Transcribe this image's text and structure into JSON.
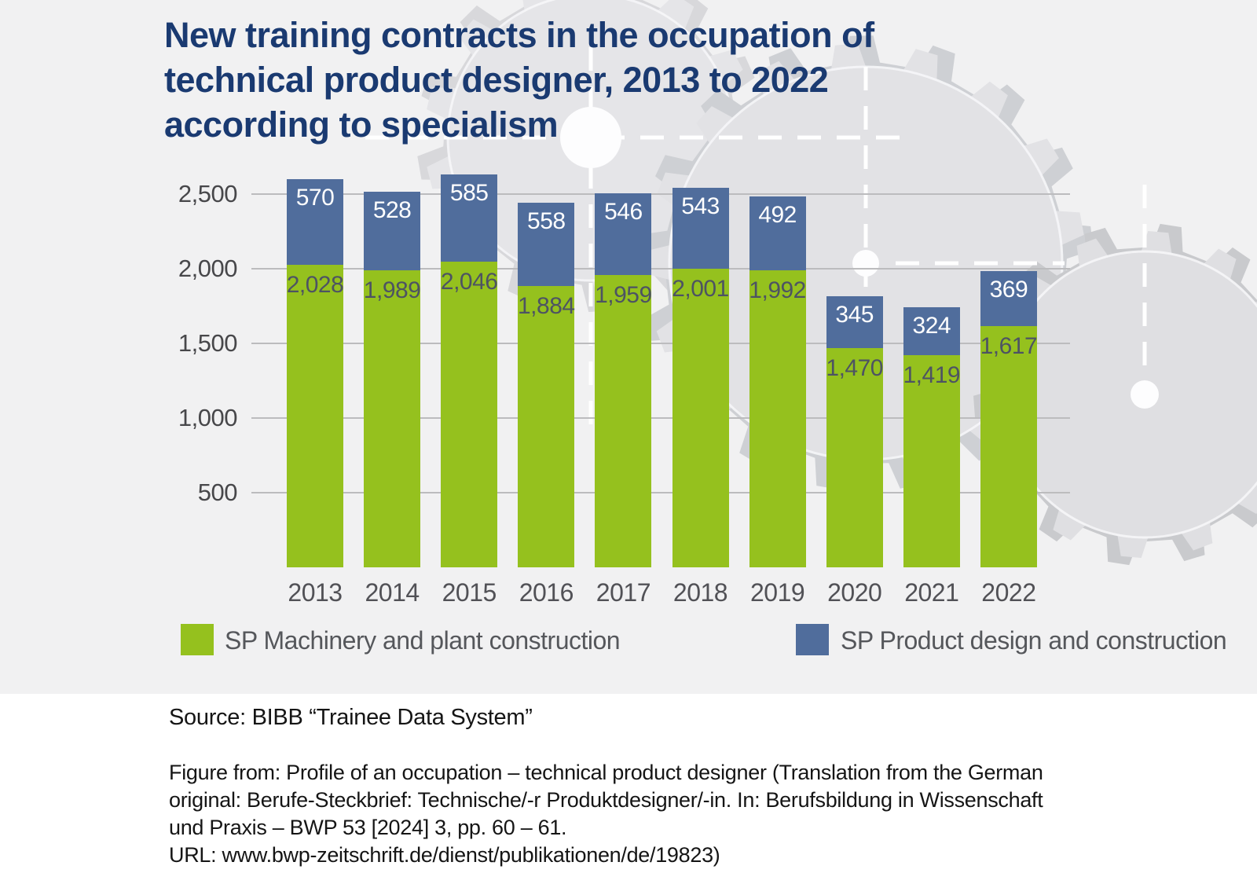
{
  "title": {
    "line1": "New training contracts in the occupation of",
    "line2": "technical product designer, 2013 to 2022",
    "line3": "according to specialism"
  },
  "chart_data": {
    "type": "bar",
    "stacked": true,
    "title": "New training contracts in the occupation of technical product designer, 2013 to 2022 according to specialism",
    "categories": [
      "2013",
      "2014",
      "2015",
      "2016",
      "2017",
      "2018",
      "2019",
      "2020",
      "2021",
      "2022"
    ],
    "series": [
      {
        "name": "SP Machinery and plant construction",
        "color": "#95c11e",
        "values": [
          2028,
          1989,
          2046,
          1884,
          1959,
          2001,
          1992,
          1470,
          1419,
          1617
        ]
      },
      {
        "name": "SP Product design and construction",
        "color": "#506d9c",
        "values": [
          570,
          528,
          585,
          558,
          546,
          543,
          492,
          345,
          324,
          369
        ]
      }
    ],
    "totals": [
      2598,
      2517,
      2631,
      2442,
      2505,
      2544,
      2484,
      1815,
      1743,
      1986
    ],
    "xlabel": "",
    "ylabel": "",
    "yticks": [
      500,
      1000,
      1500,
      2000,
      2500
    ],
    "ytick_labels": [
      "500",
      "1,000",
      "1,500",
      "2,000",
      "2,500"
    ],
    "ylim": [
      0,
      2700
    ],
    "grid": true,
    "value_labels": "inside-segments",
    "legend_position": "bottom"
  },
  "source": {
    "text": "Source: BIBB “Trainee Data System”"
  },
  "figure_reference": {
    "line1": "Figure from: Profile of an occupation – technical product designer (Translation from the German",
    "line2": "original: Berufe-Steckbrief: Technische/-r Produktdesigner/-in. In: Berufsbildung in Wissenschaft",
    "line3": "und Praxis – BWP 53 [2024] 3, pp. 60 – 61.",
    "line4": "URL: www.bwp-zeitschrift.de/dienst/publikationen/de/19823)"
  },
  "colors": {
    "series_green": "#95c11e",
    "series_blue": "#506d9c",
    "title_text": "#1a3a71",
    "panel_background": "#f1f1f2",
    "page_background": "#ffffff",
    "gridline": "#bcbcbe",
    "axis_text": "#47474a",
    "value_text_on_green": "#4d5363",
    "value_text_on_blue": "#ffffff",
    "legend_text": "#55575b",
    "footer_text": "#151515",
    "gear_fill": "#e3e3e6",
    "gear_shadow": "#c9cacd"
  }
}
